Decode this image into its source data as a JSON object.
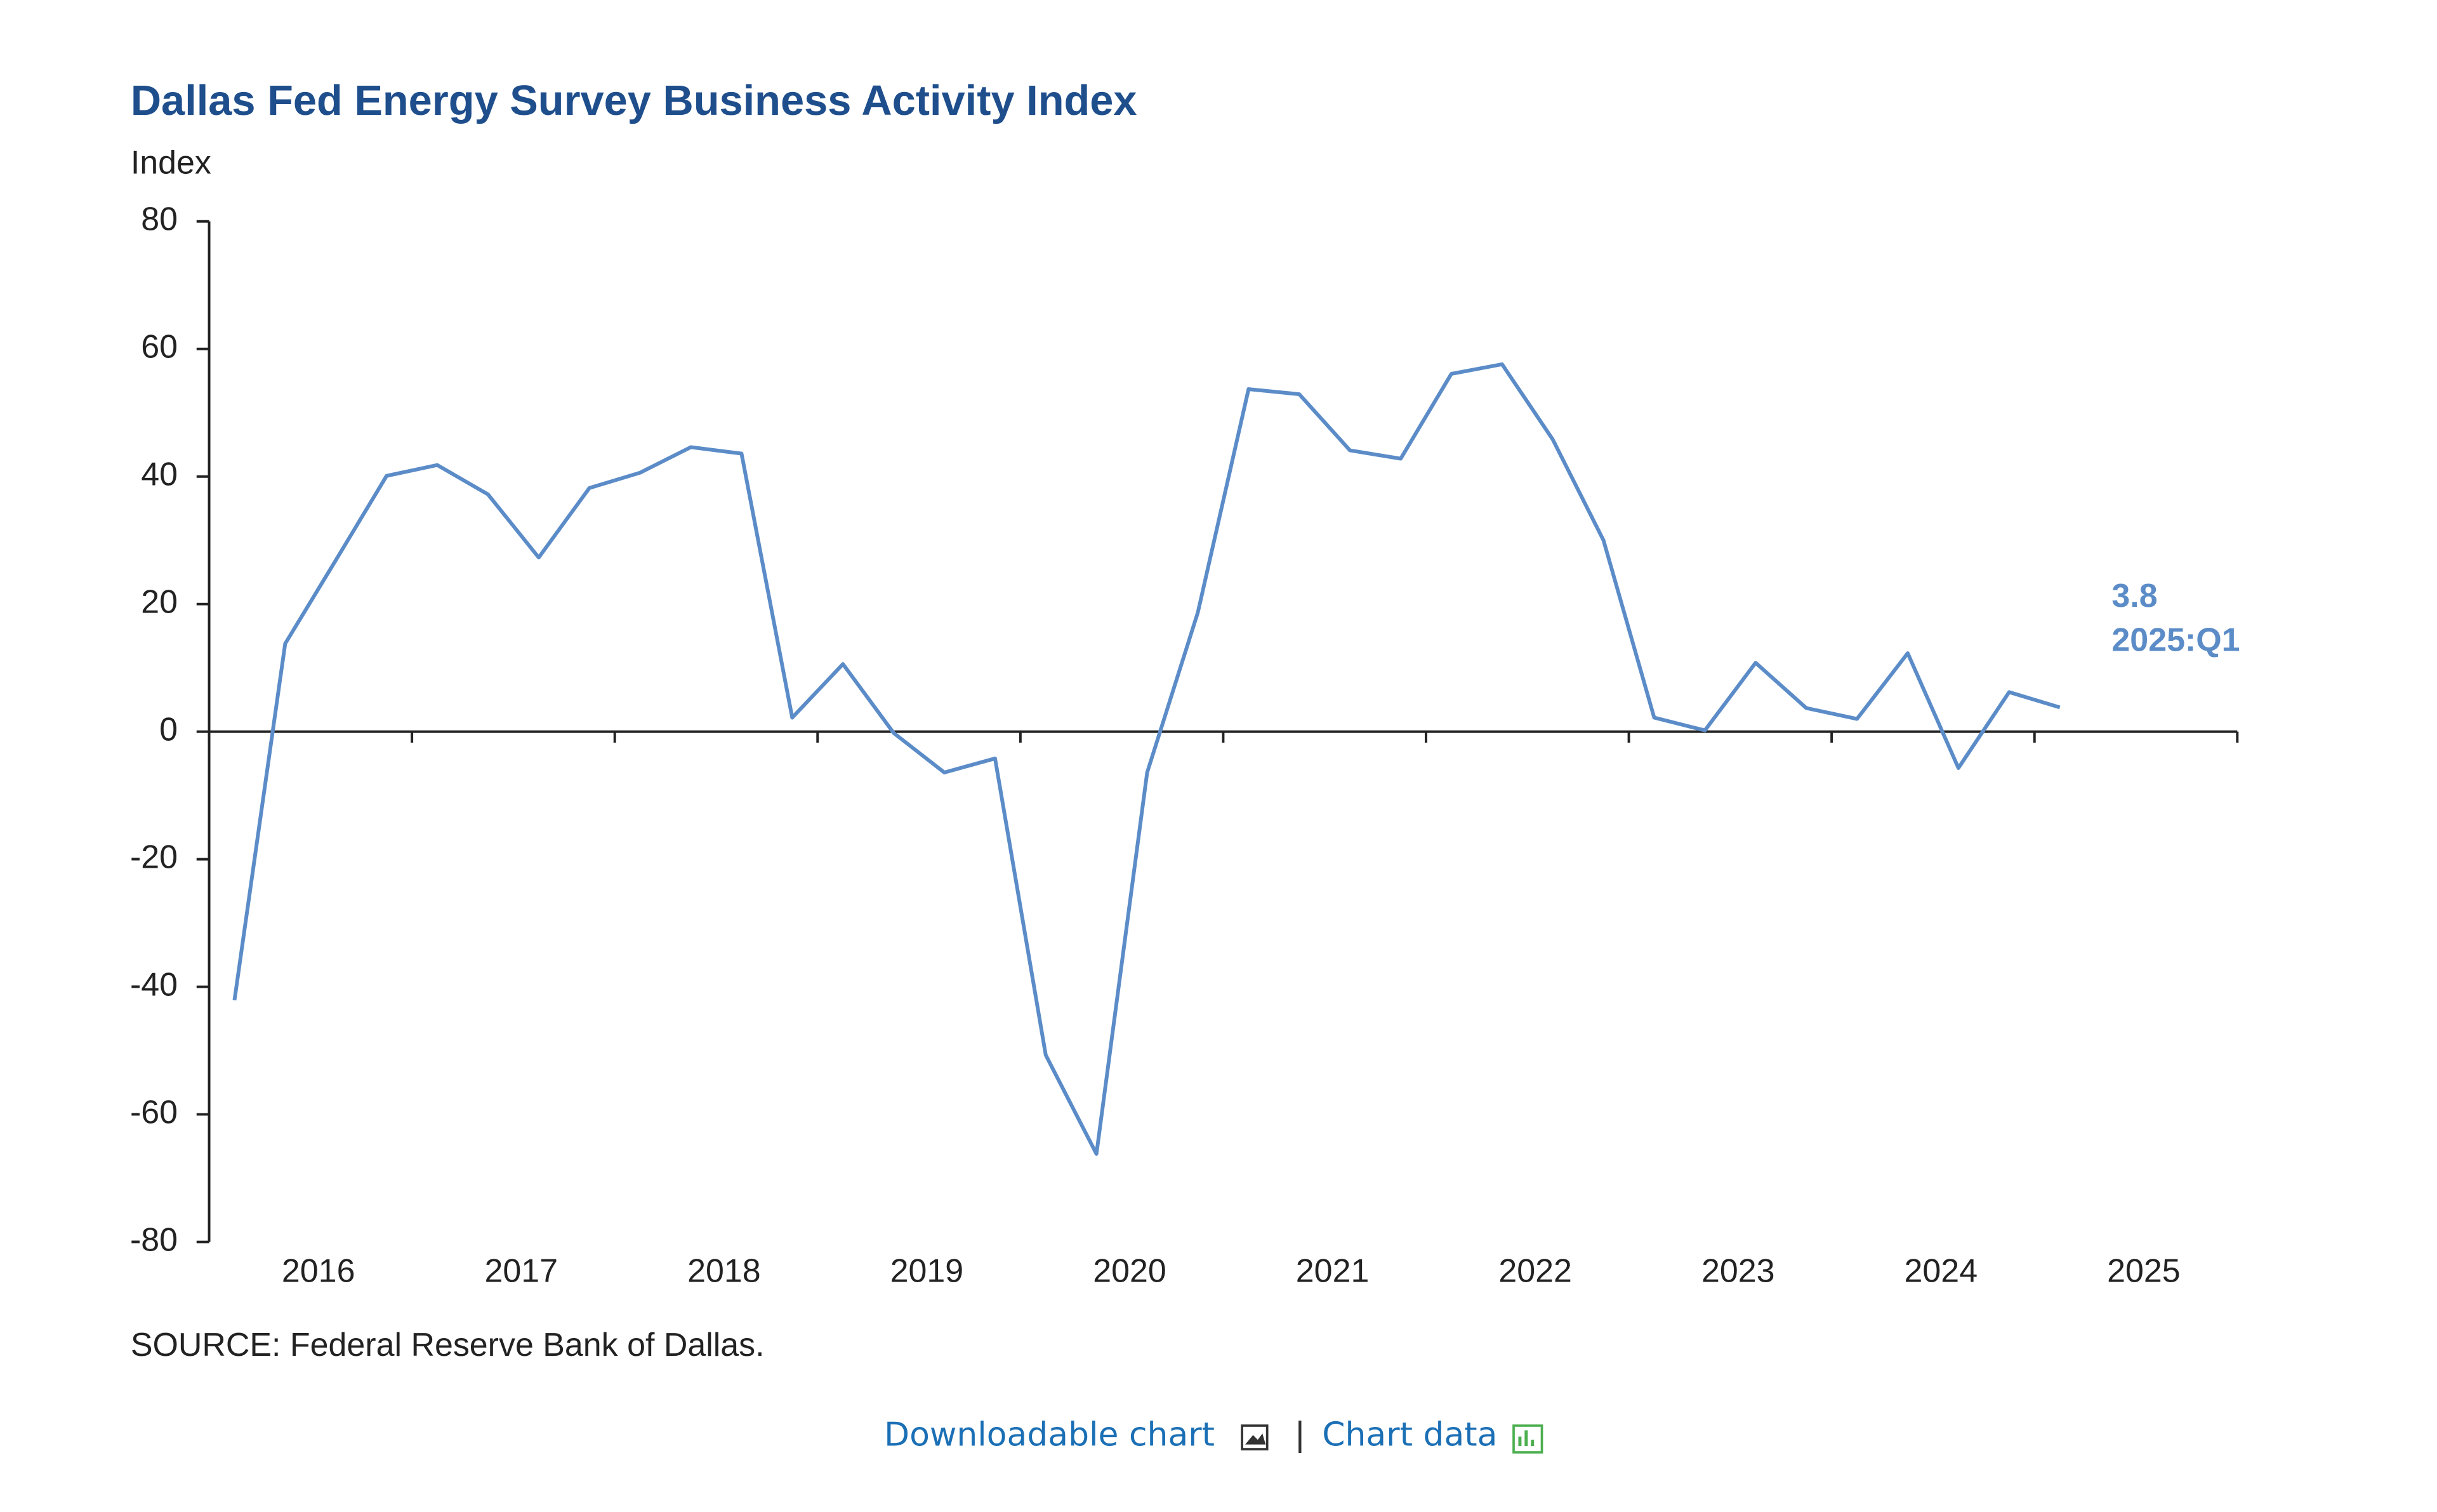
{
  "chart_data": {
    "type": "line",
    "title": "Dallas Fed Energy Survey Business Activity Index",
    "y_label": "Index",
    "source": "SOURCE:  Federal  Reserve  Bank  of  Dallas.",
    "x": [
      2016.125,
      2016.375,
      2016.625,
      2016.875,
      2017.125,
      2017.375,
      2017.625,
      2017.875,
      2018.125,
      2018.375,
      2018.625,
      2018.875,
      2019.125,
      2019.375,
      2019.625,
      2019.875,
      2020.125,
      2020.375,
      2020.625,
      2020.875,
      2021.125,
      2021.375,
      2021.625,
      2021.875,
      2022.125,
      2022.375,
      2022.625,
      2022.875,
      2023.125,
      2023.375,
      2023.625,
      2023.875,
      2024.125,
      2024.375,
      2024.625,
      2024.875,
      2025.125
    ],
    "series": [
      {
        "color": "#5b8cc8",
        "values": [
          -42.1,
          13.8,
          26.9,
          40.1,
          41.8,
          37.2,
          27.3,
          38.2,
          40.6,
          44.6,
          43.6,
          2.2,
          10.6,
          -0.2,
          -6.4,
          -4.2,
          -50.7,
          -66.2,
          -6.4,
          18.7,
          53.7,
          52.9,
          44.1,
          42.8,
          56.1,
          57.6,
          45.8,
          30.0,
          2.2,
          0.2,
          10.8,
          3.7,
          2.0,
          12.3,
          -5.7,
          6.2,
          3.8
        ]
      }
    ],
    "annotation": [
      "3.8",
      "2025:Q1"
    ],
    "xlim": [
      2016,
      2026
    ],
    "xticks": [
      {
        "value": 2016.5,
        "label": "2016"
      },
      {
        "value": 2017.5,
        "label": "2017"
      },
      {
        "value": 2018.5,
        "label": "2018"
      },
      {
        "value": 2019.5,
        "label": "2019"
      },
      {
        "value": 2020.5,
        "label": "2020"
      },
      {
        "value": 2021.5,
        "label": "2021"
      },
      {
        "value": 2022.5,
        "label": "2022"
      },
      {
        "value": 2023.5,
        "label": "2023"
      },
      {
        "value": 2024.5,
        "label": "2024"
      },
      {
        "value": 2025.5,
        "label": "2025"
      }
    ],
    "ylim": [
      -80,
      80
    ],
    "yticks": [
      -80,
      -60,
      -40,
      -20,
      0,
      20,
      40,
      60,
      80
    ],
    "grid": false
  },
  "links": {
    "download": "Downloadable chart",
    "separator": "|",
    "data": "Chart data"
  }
}
